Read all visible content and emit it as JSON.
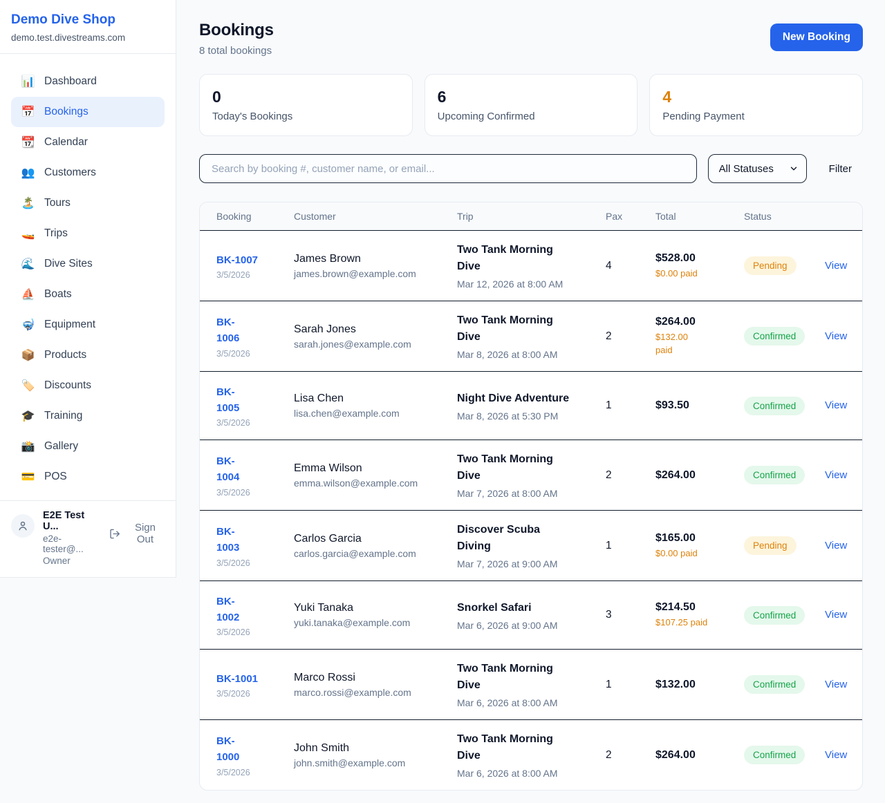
{
  "sidebar": {
    "shop_name": "Demo Dive Shop",
    "shop_domain": "demo.test.divestreams.com",
    "items": [
      {
        "label": "Dashboard",
        "icon": "📊",
        "icon_name": "bar-chart-icon",
        "active": false
      },
      {
        "label": "Bookings",
        "icon": "📅",
        "icon_name": "calendar-icon",
        "active": true
      },
      {
        "label": "Calendar",
        "icon": "📆",
        "icon_name": "tear-off-calendar-icon",
        "active": false
      },
      {
        "label": "Customers",
        "icon": "👥",
        "icon_name": "people-icon",
        "active": false
      },
      {
        "label": "Tours",
        "icon": "🏝️",
        "icon_name": "island-icon",
        "active": false
      },
      {
        "label": "Trips",
        "icon": "🚤",
        "icon_name": "speedboat-icon",
        "active": false
      },
      {
        "label": "Dive Sites",
        "icon": "🌊",
        "icon_name": "wave-icon",
        "active": false
      },
      {
        "label": "Boats",
        "icon": "⛵",
        "icon_name": "sailboat-icon",
        "active": false
      },
      {
        "label": "Equipment",
        "icon": "🤿",
        "icon_name": "diving-mask-icon",
        "active": false
      },
      {
        "label": "Products",
        "icon": "📦",
        "icon_name": "package-icon",
        "active": false
      },
      {
        "label": "Discounts",
        "icon": "🏷️",
        "icon_name": "tag-icon",
        "active": false
      },
      {
        "label": "Training",
        "icon": "🎓",
        "icon_name": "graduation-cap-icon",
        "active": false
      },
      {
        "label": "Gallery",
        "icon": "📸",
        "icon_name": "camera-icon",
        "active": false
      },
      {
        "label": "POS",
        "icon": "💳",
        "icon_name": "credit-card-icon",
        "active": false
      }
    ],
    "user": {
      "name": "E2E Test U...",
      "email": "e2e-tester@...",
      "role": "Owner",
      "sign_out_label": "Sign Out"
    }
  },
  "header": {
    "title": "Bookings",
    "subtitle": "8 total bookings",
    "new_booking_label": "New Booking"
  },
  "stats": [
    {
      "value": "0",
      "label": "Today's Bookings",
      "accent": false
    },
    {
      "value": "6",
      "label": "Upcoming Confirmed",
      "accent": false
    },
    {
      "value": "4",
      "label": "Pending Payment",
      "accent": true
    }
  ],
  "filters": {
    "search_placeholder": "Search by booking #, customer name, or email...",
    "status_selected": "All Statuses",
    "filter_label": "Filter"
  },
  "table": {
    "columns": [
      "Booking",
      "Customer",
      "Trip",
      "Pax",
      "Total",
      "Status"
    ],
    "view_label": "View",
    "rows": [
      {
        "id": "BK-1007",
        "id_two_lines": false,
        "date": "3/5/2026",
        "customer": "James Brown",
        "email": "james.brown@example.com",
        "trip": "Two Tank Morning Dive",
        "trip_two_lines": true,
        "trip_datetime": "Mar 12, 2026 at 8:00 AM",
        "pax": "4",
        "total": "$528.00",
        "paid": "$0.00 paid",
        "paid_two_lines": false,
        "status": "Pending",
        "status_type": "pending"
      },
      {
        "id": "BK-1006",
        "id_two_lines": true,
        "date": "3/5/2026",
        "customer": "Sarah Jones",
        "email": "sarah.jones@example.com",
        "trip": "Two Tank Morning Dive",
        "trip_two_lines": true,
        "trip_datetime": "Mar 8, 2026 at 8:00 AM",
        "pax": "2",
        "total": "$264.00",
        "paid": "$132.00 paid",
        "paid_two_lines": true,
        "status": "Confirmed",
        "status_type": "confirmed"
      },
      {
        "id": "BK-1005",
        "id_two_lines": true,
        "date": "3/5/2026",
        "customer": "Lisa Chen",
        "email": "lisa.chen@example.com",
        "trip": "Night Dive Adventure",
        "trip_two_lines": false,
        "trip_datetime": "Mar 8, 2026 at 5:30 PM",
        "pax": "1",
        "total": "$93.50",
        "paid": "",
        "paid_two_lines": false,
        "status": "Confirmed",
        "status_type": "confirmed"
      },
      {
        "id": "BK-1004",
        "id_two_lines": true,
        "date": "3/5/2026",
        "customer": "Emma Wilson",
        "email": "emma.wilson@example.com",
        "trip": "Two Tank Morning Dive",
        "trip_two_lines": true,
        "trip_datetime": "Mar 7, 2026 at 8:00 AM",
        "pax": "2",
        "total": "$264.00",
        "paid": "",
        "paid_two_lines": false,
        "status": "Confirmed",
        "status_type": "confirmed"
      },
      {
        "id": "BK-1003",
        "id_two_lines": true,
        "date": "3/5/2026",
        "customer": "Carlos Garcia",
        "email": "carlos.garcia@example.com",
        "trip": "Discover Scuba Diving",
        "trip_two_lines": true,
        "trip_datetime": "Mar 7, 2026 at 9:00 AM",
        "pax": "1",
        "total": "$165.00",
        "paid": "$0.00 paid",
        "paid_two_lines": false,
        "status": "Pending",
        "status_type": "pending"
      },
      {
        "id": "BK-1002",
        "id_two_lines": true,
        "date": "3/5/2026",
        "customer": "Yuki Tanaka",
        "email": "yuki.tanaka@example.com",
        "trip": "Snorkel Safari",
        "trip_two_lines": false,
        "trip_datetime": "Mar 6, 2026 at 9:00 AM",
        "pax": "3",
        "total": "$214.50",
        "paid": "$107.25 paid",
        "paid_two_lines": false,
        "status": "Confirmed",
        "status_type": "confirmed"
      },
      {
        "id": "BK-1001",
        "id_two_lines": false,
        "date": "3/5/2026",
        "customer": "Marco Rossi",
        "email": "marco.rossi@example.com",
        "trip": "Two Tank Morning Dive",
        "trip_two_lines": true,
        "trip_datetime": "Mar 6, 2026 at 8:00 AM",
        "pax": "1",
        "total": "$132.00",
        "paid": "",
        "paid_two_lines": false,
        "status": "Confirmed",
        "status_type": "confirmed"
      },
      {
        "id": "BK-1000",
        "id_two_lines": true,
        "date": "3/5/2026",
        "customer": "John Smith",
        "email": "john.smith@example.com",
        "trip": "Two Tank Morning Dive",
        "trip_two_lines": true,
        "trip_datetime": "Mar 6, 2026 at 8:00 AM",
        "pax": "2",
        "total": "$264.00",
        "paid": "",
        "paid_two_lines": false,
        "status": "Confirmed",
        "status_type": "confirmed"
      }
    ]
  },
  "colors": {
    "accent_blue": "#2563eb",
    "dark_text": "#0f172a",
    "gray_text": "#64748b",
    "orange": "#dd820a",
    "green": "#16a34a",
    "pending_badge_bg": "#fdf4dc",
    "confirmed_badge_bg": "#e4f8eb",
    "page_bg": "#f8fafc",
    "card_border": "#e7ebf0",
    "row_divider": "#111c2b"
  }
}
